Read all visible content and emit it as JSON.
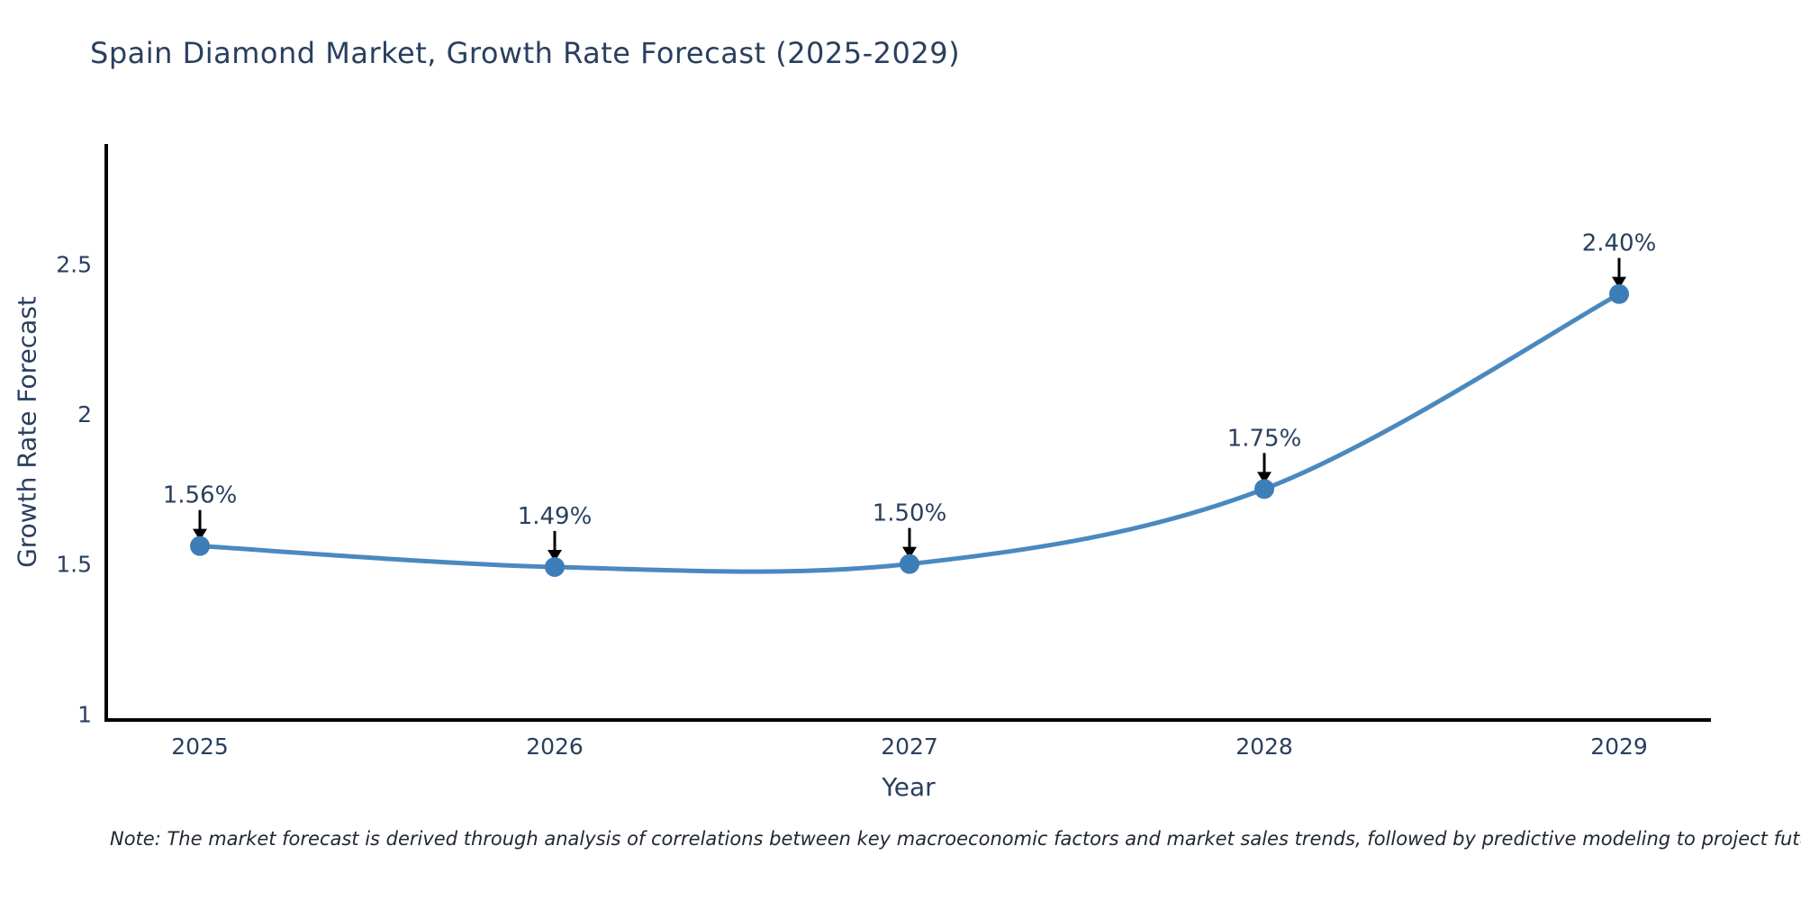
{
  "chart_data": {
    "type": "line",
    "title": "Spain Diamond Market, Growth Rate Forecast (2025-2029)",
    "xlabel": "Year",
    "ylabel": "Growth Rate Forecast",
    "categories": [
      "2025",
      "2026",
      "2027",
      "2028",
      "2029"
    ],
    "series": [
      {
        "name": "Growth Rate Forecast",
        "values": [
          1.56,
          1.49,
          1.5,
          1.75,
          2.4
        ],
        "point_labels": [
          "1.56%",
          "1.49%",
          "1.50%",
          "1.75%",
          "2.40%"
        ]
      }
    ],
    "yticks": [
      1,
      1.5,
      2,
      2.5
    ],
    "ylim": [
      0.98,
      2.9
    ],
    "grid": false,
    "legend_position": "none",
    "line_shape": "spline",
    "colors": {
      "line": "#4a89bf",
      "marker": "#3d7eb8",
      "axis": "#000000",
      "text": "#2a3f5f",
      "arrow": "#000000",
      "note_text": "#212832",
      "background": "#ffffff"
    },
    "note": "Note: The market forecast is derived through analysis of correlations between key macroeconomic factors and market sales trends, followed by predictive modeling to project future sales"
  }
}
